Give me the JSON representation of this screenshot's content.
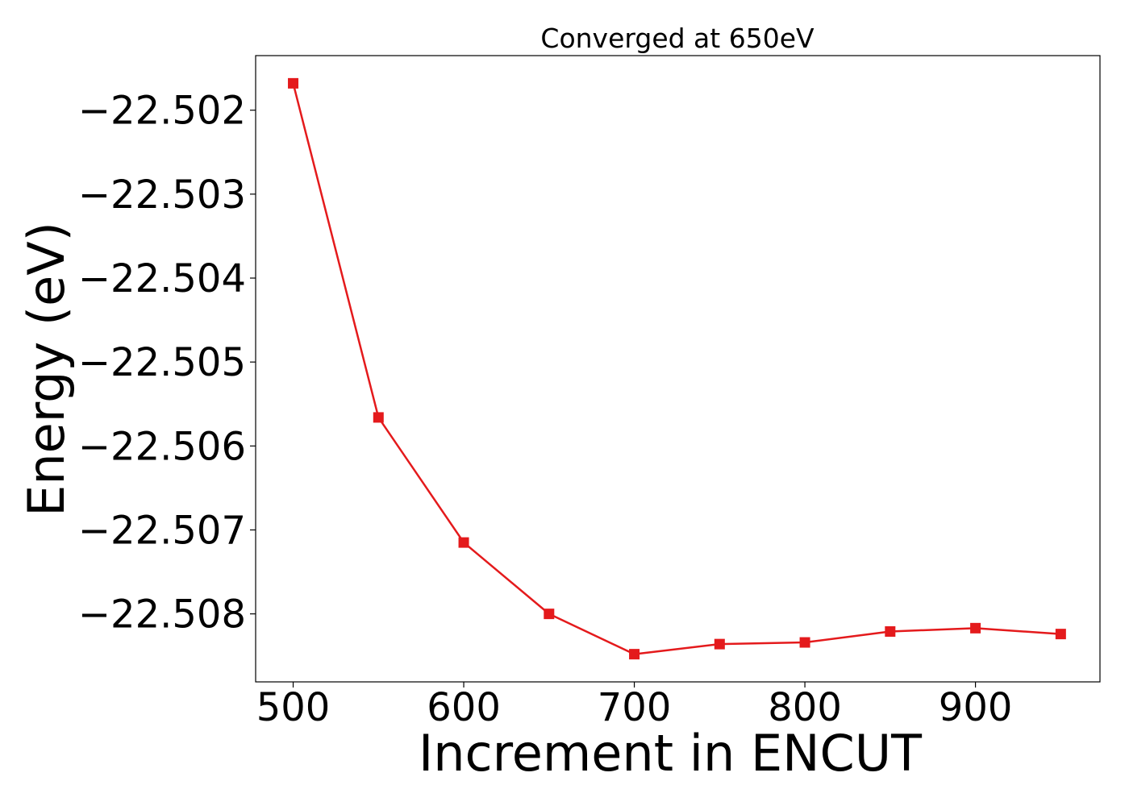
{
  "chart_data": {
    "type": "line",
    "title": "Converged at 650eV",
    "xlabel": "Increment in ENCUT",
    "ylabel": "Energy (eV)",
    "x": [
      500,
      550,
      600,
      650,
      700,
      750,
      800,
      850,
      900,
      950
    ],
    "series": [
      {
        "values": [
          -22.50168,
          -22.50566,
          -22.50715,
          -22.508,
          -22.50848,
          -22.50836,
          -22.50834,
          -22.50821,
          -22.50817,
          -22.50824
        ],
        "color": "#e41a1c",
        "marker": "square"
      }
    ],
    "xlim": [
      478,
      973
    ],
    "ylim": [
      -22.50881,
      -22.50135
    ],
    "xticks": [
      500,
      600,
      700,
      800,
      900
    ],
    "xtick_labels": [
      "500",
      "600",
      "700",
      "800",
      "900"
    ],
    "yticks": [
      -22.502,
      -22.503,
      -22.504,
      -22.505,
      -22.506,
      -22.507,
      -22.508
    ],
    "ytick_labels": [
      "−22.502",
      "−22.503",
      "−22.504",
      "−22.505",
      "−22.506",
      "−22.507",
      "−22.508"
    ],
    "grid": false,
    "legend": "none"
  }
}
